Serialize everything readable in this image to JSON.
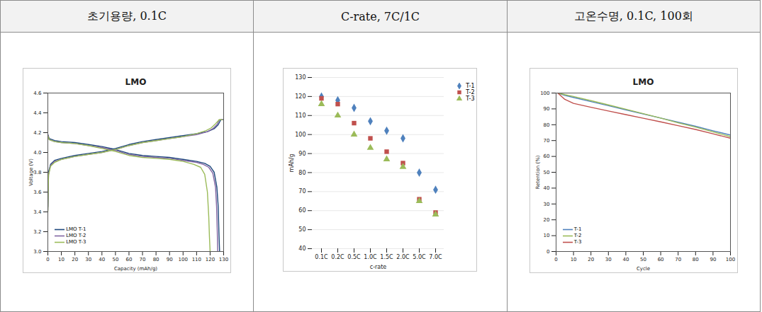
{
  "header": [
    "초기용량, 0.1C",
    "C-rate, 7C/1C",
    "고온수명, 0.1C, 100회"
  ],
  "chart_data": [
    {
      "type": "line",
      "title": "LMO",
      "x_label": "Capacity (mAh/g)",
      "y_label": "Voltage (V)",
      "xlim": [
        0,
        130
      ],
      "xticks": [
        0,
        10,
        20,
        30,
        40,
        50,
        60,
        70,
        80,
        90,
        100,
        110,
        120,
        130
      ],
      "ylim": [
        3,
        4.6
      ],
      "yticks": [
        {
          "value": 3,
          "label": "3.0"
        },
        3.2,
        3.4,
        3.6,
        3.8,
        {
          "value": 4,
          "label": "4.0"
        },
        4.2,
        4.4,
        4.6
      ],
      "grid": false,
      "legend": "bottom-left",
      "series": [
        {
          "name": "LMO T-1",
          "color": "#1F497D",
          "x": [
            0,
            0.5,
            2,
            5,
            10,
            20,
            30,
            40,
            50,
            60,
            70,
            80,
            90,
            100,
            110,
            118,
            123,
            126,
            127.5,
            128,
            130,
            null,
            0,
            1,
            5,
            10,
            20,
            30,
            40,
            50,
            60,
            70,
            80,
            90,
            100,
            110,
            116,
            120,
            123,
            125,
            126,
            126.5,
            127
          ],
          "values": [
            3.45,
            3.8,
            3.88,
            3.92,
            3.94,
            3.97,
            3.99,
            4.01,
            4.04,
            4.08,
            4.11,
            4.13,
            4.15,
            4.17,
            4.19,
            4.21,
            4.24,
            4.28,
            4.32,
            4.33,
            4.33,
            null,
            4.18,
            4.14,
            4.12,
            4.11,
            4.1,
            4.08,
            4.06,
            4.03,
            3.99,
            3.97,
            3.96,
            3.95,
            3.93,
            3.91,
            3.89,
            3.86,
            3.8,
            3.65,
            3.45,
            3.2,
            3.0
          ]
        },
        {
          "name": "LMO T-2",
          "color": "#8064A2",
          "x": [
            0,
            0.5,
            2,
            5,
            10,
            20,
            30,
            40,
            50,
            60,
            70,
            80,
            90,
            100,
            110,
            118,
            122,
            125,
            126.5,
            127,
            129.5,
            null,
            0,
            1,
            5,
            10,
            20,
            30,
            40,
            50,
            60,
            70,
            80,
            90,
            100,
            110,
            115,
            119,
            122,
            124,
            124.8,
            125.3,
            125.6
          ],
          "values": [
            3.42,
            3.78,
            3.87,
            3.91,
            3.93,
            3.96,
            3.98,
            4.0,
            4.03,
            4.07,
            4.1,
            4.12,
            4.14,
            4.16,
            4.18,
            4.21,
            4.24,
            4.28,
            4.32,
            4.33,
            4.33,
            null,
            4.18,
            4.13,
            4.11,
            4.1,
            4.09,
            4.07,
            4.05,
            4.02,
            3.98,
            3.96,
            3.95,
            3.94,
            3.92,
            3.9,
            3.88,
            3.85,
            3.79,
            3.65,
            3.45,
            3.2,
            3.0
          ]
        },
        {
          "name": "LMO T-3",
          "color": "#9BBB59",
          "x": [
            0,
            0.5,
            2,
            5,
            10,
            20,
            30,
            40,
            50,
            60,
            70,
            80,
            90,
            100,
            110,
            117,
            121,
            124,
            126,
            126.5,
            129,
            null,
            0,
            1,
            5,
            10,
            20,
            30,
            40,
            50,
            60,
            70,
            80,
            90,
            100,
            108,
            113,
            116,
            118,
            119,
            119.5,
            120
          ],
          "values": [
            3.4,
            3.77,
            3.86,
            3.9,
            3.93,
            3.96,
            3.98,
            4.0,
            4.03,
            4.07,
            4.1,
            4.12,
            4.14,
            4.16,
            4.19,
            4.22,
            4.25,
            4.29,
            4.32,
            4.33,
            4.33,
            null,
            4.17,
            4.13,
            4.11,
            4.1,
            4.09,
            4.07,
            4.04,
            4.01,
            3.97,
            3.95,
            3.94,
            3.93,
            3.91,
            3.88,
            3.85,
            3.78,
            3.6,
            3.35,
            3.15,
            3.0
          ]
        }
      ]
    },
    {
      "type": "scatter",
      "x_label": "c-rate",
      "y_label": "mAh/g",
      "categories": [
        "0.1C",
        "0.2C",
        "0.5C",
        "1.0C",
        "1.5C",
        "2.0C",
        "5.0C",
        "7.0C"
      ],
      "ylim": [
        40,
        130
      ],
      "yticks": [
        40,
        50,
        60,
        70,
        80,
        90,
        100,
        110,
        120,
        130
      ],
      "grid": true,
      "legend": "right",
      "series": [
        {
          "name": "T-1",
          "color": "#4F81BD",
          "marker": "diamond",
          "values": [
            120,
            118,
            114,
            107,
            102,
            98,
            80,
            71
          ]
        },
        {
          "name": "T-2",
          "color": "#C0504D",
          "marker": "square",
          "values": [
            119,
            116,
            106,
            98,
            91,
            85,
            66,
            59
          ]
        },
        {
          "name": "T-3",
          "color": "#9BBB59",
          "marker": "triangle",
          "values": [
            116,
            110,
            100,
            93,
            87,
            83,
            65,
            58
          ]
        }
      ]
    },
    {
      "type": "line",
      "title": "LMO",
      "x_label": "Cycle",
      "y_label": "Retention (%)",
      "x": [
        1,
        5,
        10,
        20,
        30,
        40,
        50,
        60,
        70,
        80,
        90,
        100
      ],
      "xlim": [
        0,
        100
      ],
      "xticks": [
        0,
        10,
        20,
        30,
        40,
        50,
        60,
        70,
        80,
        90,
        100
      ],
      "ylim": [
        0,
        100
      ],
      "yticks": [
        0,
        10,
        20,
        30,
        40,
        50,
        60,
        70,
        80,
        90,
        100
      ],
      "grid": false,
      "legend": "bottom-left",
      "series": [
        {
          "name": "T-1",
          "color": "#4F81BD",
          "values": [
            100,
            98.5,
            97.2,
            94.6,
            92.0,
            89.4,
            86.8,
            84.2,
            81.6,
            79.0,
            76.2,
            73.5
          ]
        },
        {
          "name": "T-2",
          "color": "#9BBB59",
          "values": [
            100,
            99.0,
            97.8,
            95.2,
            92.5,
            89.8,
            87.0,
            84.2,
            81.2,
            78.5,
            75.5,
            72.5
          ]
        },
        {
          "name": "T-3",
          "color": "#C0504D",
          "values": [
            100,
            96.0,
            93.5,
            91.0,
            88.7,
            86.4,
            84.1,
            81.8,
            79.4,
            77.0,
            74.3,
            71.5
          ]
        }
      ]
    }
  ]
}
